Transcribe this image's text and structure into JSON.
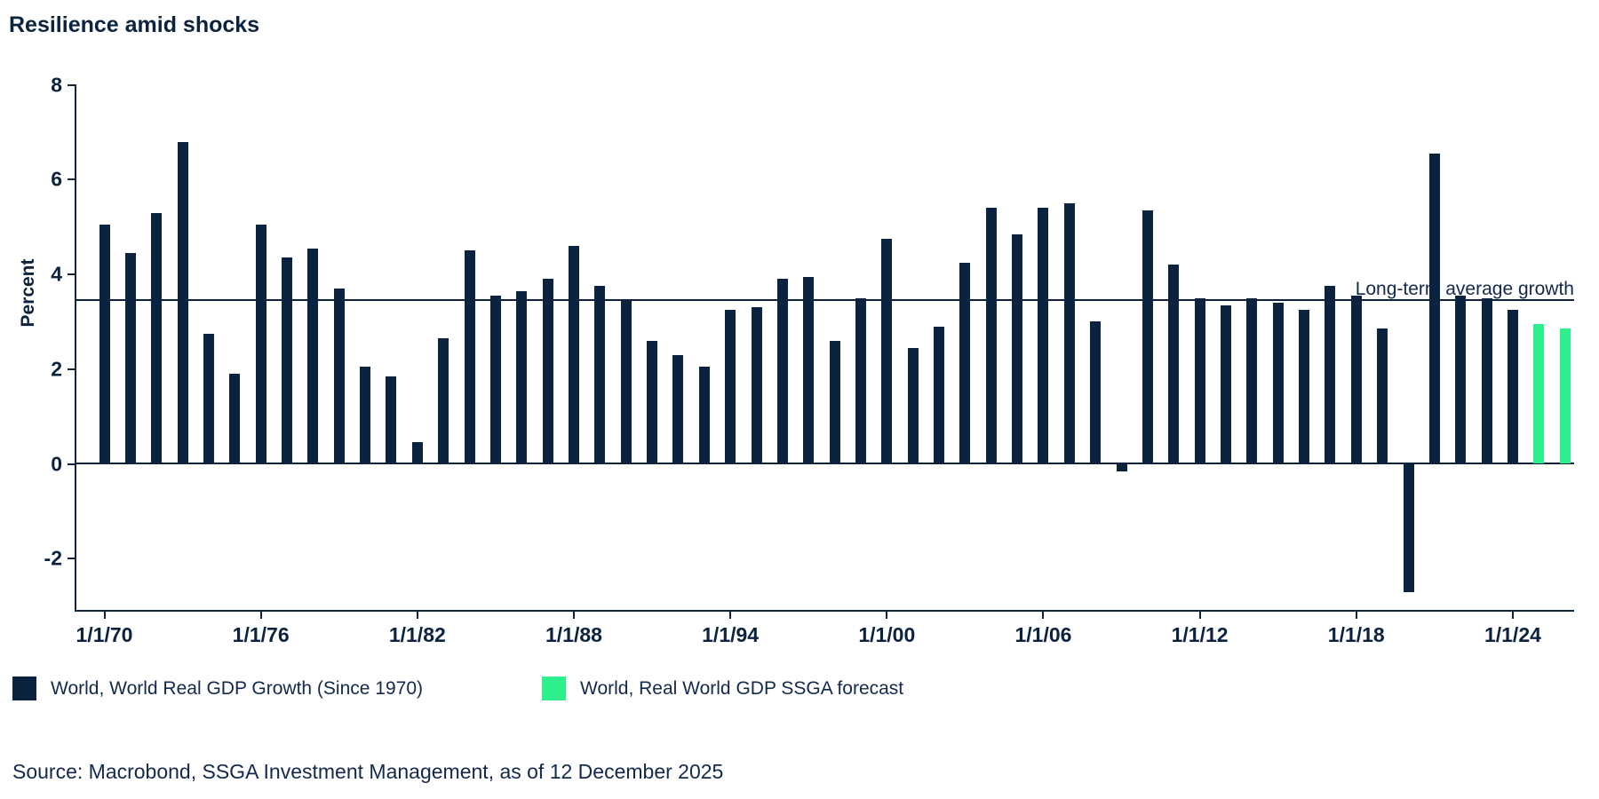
{
  "title": "Resilience amid shocks",
  "source": "Source: Macrobond, SSGA Investment Management, as of 12 December 2025",
  "legend": {
    "actual_label": "World, World Real GDP Growth (Since 1970)",
    "forecast_label": "World, Real World GDP SSGA forecast"
  },
  "colors": {
    "navy": "#0c2340",
    "forecast_green": "#2df08d"
  },
  "chart_data": {
    "type": "bar",
    "title": "Resilience amid shocks",
    "xlabel": "",
    "ylabel": "Percent",
    "ylim": [
      -3.1,
      8
    ],
    "y_ticks": [
      8,
      6,
      4,
      2,
      0,
      -2
    ],
    "grid": "off",
    "legend_position": "bottom",
    "average_line": {
      "value": 3.46,
      "label": "Long-term average growth"
    },
    "x_tick_labels": [
      "1/1/70",
      "1/1/76",
      "1/1/82",
      "1/1/88",
      "1/1/94",
      "1/1/00",
      "1/1/06",
      "1/1/12",
      "1/1/18",
      "1/1/24"
    ],
    "x_tick_step": 6,
    "years": [
      1970,
      1971,
      1972,
      1973,
      1974,
      1975,
      1976,
      1977,
      1978,
      1979,
      1980,
      1981,
      1982,
      1983,
      1984,
      1985,
      1986,
      1987,
      1988,
      1989,
      1990,
      1991,
      1992,
      1993,
      1994,
      1995,
      1996,
      1997,
      1998,
      1999,
      2000,
      2001,
      2002,
      2003,
      2004,
      2005,
      2006,
      2007,
      2008,
      2009,
      2010,
      2011,
      2012,
      2013,
      2014,
      2015,
      2016,
      2017,
      2018,
      2019,
      2020,
      2021,
      2022,
      2023,
      2024,
      2025,
      2026
    ],
    "values": [
      5.05,
      4.45,
      5.3,
      6.8,
      2.75,
      1.9,
      5.05,
      4.35,
      4.55,
      3.7,
      2.05,
      1.85,
      0.45,
      2.65,
      4.5,
      3.55,
      3.65,
      3.9,
      4.6,
      3.75,
      3.45,
      2.6,
      2.3,
      2.05,
      3.25,
      3.3,
      3.9,
      3.95,
      2.6,
      3.5,
      4.75,
      2.45,
      2.9,
      4.25,
      5.4,
      4.85,
      5.4,
      5.5,
      3.0,
      -0.15,
      5.35,
      4.2,
      3.5,
      3.35,
      3.5,
      3.4,
      3.25,
      3.75,
      3.55,
      2.85,
      -2.7,
      6.55,
      3.55,
      3.5,
      3.25,
      2.95,
      2.85
    ],
    "forecast_from_year": 2025,
    "series": [
      {
        "name": "World, World Real GDP Growth (Since 1970)",
        "color": "#0c2340"
      },
      {
        "name": "World, Real World GDP SSGA forecast",
        "color": "#2df08d"
      }
    ]
  }
}
